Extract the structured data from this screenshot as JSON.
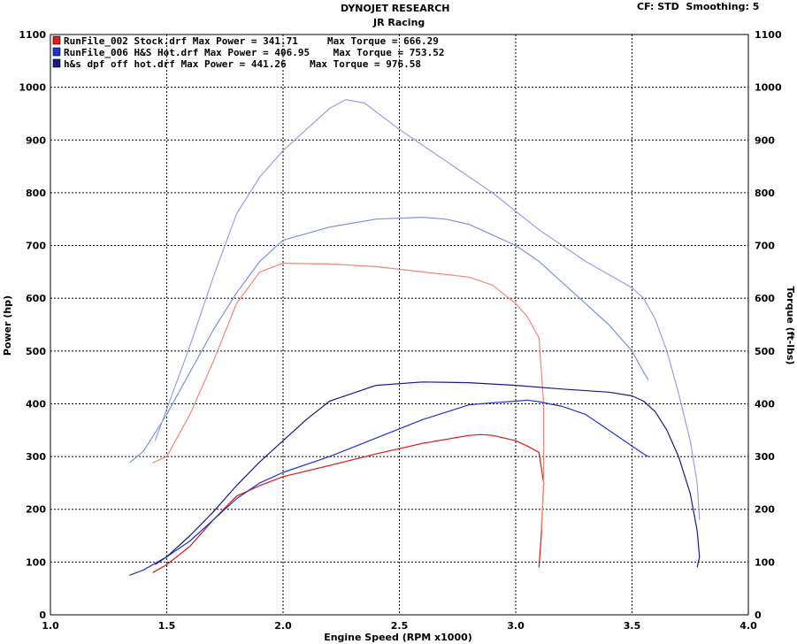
{
  "header": {
    "company": "DYNOJET RESEARCH",
    "shop": "JR Racing",
    "settings": "CF: STD  Smoothing: 5"
  },
  "chart_data": {
    "type": "line",
    "title": "DYNOJET RESEARCH",
    "subtitle": "JR Racing",
    "xlabel": "Engine Speed (RPM x1000)",
    "ylabel_left": "Power (hp)",
    "ylabel_right": "Torque (ft-lbs)",
    "xlim": [
      1.0,
      4.0
    ],
    "ylim": [
      0,
      1100
    ],
    "x_ticks": [
      "1.0",
      "1.5",
      "2.0",
      "2.5",
      "3.0",
      "3.5",
      "4.0"
    ],
    "y_ticks": [
      "0",
      "100",
      "200",
      "300",
      "400",
      "500",
      "600",
      "700",
      "800",
      "900",
      "1000",
      "1100"
    ],
    "grid": true,
    "legend_position": "top-left",
    "legend": [
      {
        "label": "RunFile_002 Stock.drf Max Power = 341.71     Max Torque = 666.29",
        "color": "#e21a1a"
      },
      {
        "label": "RunFile_006 H&S Hot.drf Max Power = 406.95    Max Torque = 753.52",
        "color": "#2233cc"
      },
      {
        "label": "h&s dpf off hot.drf Max Power = 441.26    Max Torque = 976.58",
        "color": "#1a1a80"
      }
    ],
    "series": [
      {
        "name": "RunFile_002 Stock.drf",
        "measure": "Power",
        "color": "#d81818",
        "x": [
          1.44,
          1.5,
          1.6,
          1.7,
          1.8,
          1.9,
          2.0,
          2.2,
          2.4,
          2.6,
          2.8,
          2.85,
          2.9,
          3.0,
          3.05,
          3.1,
          3.12,
          3.11,
          3.1
        ],
        "y": [
          80,
          95,
          130,
          180,
          225,
          245,
          262,
          283,
          305,
          325,
          340,
          341.71,
          340,
          330,
          320,
          308,
          250,
          150,
          90
        ]
      },
      {
        "name": "RunFile_002 Stock.drf",
        "measure": "Torque",
        "color": "#f08878",
        "x": [
          1.44,
          1.5,
          1.6,
          1.7,
          1.8,
          1.9,
          2.0,
          2.2,
          2.4,
          2.6,
          2.8,
          2.9,
          3.0,
          3.05,
          3.1,
          3.12,
          3.12,
          3.11
        ],
        "y": [
          288,
          300,
          380,
          480,
          590,
          650,
          666.29,
          665,
          660,
          650,
          640,
          625,
          590,
          565,
          525,
          400,
          250,
          160
        ]
      },
      {
        "name": "RunFile_006 H&S Hot.drf",
        "measure": "Power",
        "color": "#2233cc",
        "x": [
          1.34,
          1.4,
          1.5,
          1.6,
          1.7,
          1.8,
          1.9,
          2.0,
          2.2,
          2.4,
          2.6,
          2.8,
          2.9,
          3.0,
          3.05,
          3.1,
          3.2,
          3.3,
          3.4,
          3.5,
          3.55,
          3.57
        ],
        "y": [
          75,
          85,
          110,
          140,
          180,
          220,
          250,
          270,
          300,
          335,
          370,
          398,
          402,
          405,
          406.95,
          404,
          395,
          380,
          350,
          320,
          305,
          300
        ]
      },
      {
        "name": "RunFile_006 H&S Hot.drf",
        "measure": "Torque",
        "color": "#8090e0",
        "x": [
          1.34,
          1.4,
          1.5,
          1.6,
          1.7,
          1.8,
          1.9,
          2.0,
          2.2,
          2.4,
          2.6,
          2.7,
          2.8,
          2.9,
          3.0,
          3.1,
          3.2,
          3.3,
          3.4,
          3.5,
          3.55,
          3.57
        ],
        "y": [
          288,
          310,
          380,
          460,
          540,
          610,
          670,
          710,
          735,
          750,
          753.52,
          750,
          740,
          720,
          700,
          670,
          630,
          590,
          550,
          500,
          460,
          445
        ]
      },
      {
        "name": "h&s dpf off hot.drf",
        "measure": "Power",
        "color": "#1a1a80",
        "x": [
          1.45,
          1.5,
          1.6,
          1.7,
          1.8,
          1.9,
          2.0,
          2.1,
          2.2,
          2.4,
          2.6,
          2.8,
          3.0,
          3.2,
          3.4,
          3.5,
          3.55,
          3.6,
          3.65,
          3.7,
          3.75,
          3.78,
          3.79,
          3.78
        ],
        "y": [
          95,
          110,
          150,
          195,
          245,
          290,
          330,
          370,
          405,
          435,
          441.26,
          440,
          435,
          428,
          422,
          415,
          405,
          385,
          350,
          300,
          230,
          160,
          110,
          90
        ]
      },
      {
        "name": "h&s dpf off hot.drf",
        "measure": "Torque",
        "color": "#9aa0e0",
        "x": [
          1.45,
          1.5,
          1.6,
          1.7,
          1.8,
          1.9,
          2.0,
          2.1,
          2.2,
          2.27,
          2.35,
          2.5,
          2.7,
          2.9,
          3.1,
          3.3,
          3.5,
          3.55,
          3.6,
          3.65,
          3.7,
          3.75,
          3.78,
          3.79
        ],
        "y": [
          330,
          390,
          510,
          640,
          760,
          830,
          880,
          920,
          960,
          976.58,
          970,
          920,
          860,
          800,
          730,
          670,
          620,
          600,
          560,
          500,
          420,
          330,
          250,
          180
        ]
      }
    ]
  }
}
